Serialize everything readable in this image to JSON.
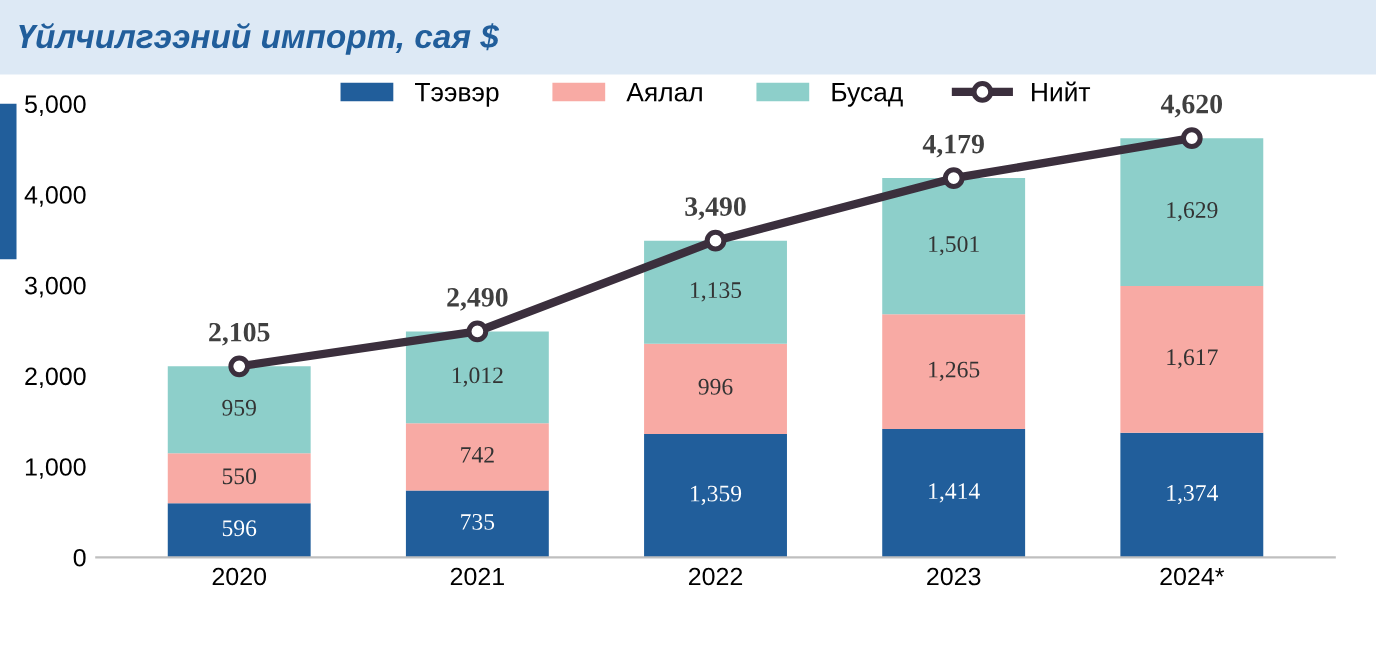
{
  "chart_data": {
    "type": "bar",
    "title": "Үйлчилгээний импорт, сая $",
    "stacked": true,
    "categories": [
      "2020",
      "2021",
      "2022",
      "2023",
      "2024*"
    ],
    "series": [
      {
        "name": "Тээвэр",
        "color": "#215e9b",
        "values": [
          596,
          735,
          1359,
          1414,
          1374
        ],
        "value_labels": [
          "596",
          "735",
          "1,359",
          "1,414",
          "1,374"
        ]
      },
      {
        "name": "Аялал",
        "color": "#f8aaa4",
        "values": [
          550,
          742,
          996,
          1265,
          1617
        ],
        "value_labels": [
          "550",
          "742",
          "996",
          "1,265",
          "1,617"
        ]
      },
      {
        "name": "Бусад",
        "color": "#8dcfca",
        "values": [
          959,
          1012,
          1135,
          1501,
          1629
        ],
        "value_labels": [
          "959",
          "1,012",
          "1,135",
          "1,501",
          "1,629"
        ]
      },
      {
        "name": "Нийт",
        "type": "line",
        "color": "#3b2f3d",
        "marker": "circle",
        "values": [
          2105,
          2490,
          3490,
          4179,
          4620
        ],
        "value_labels": [
          "2,105",
          "2,490",
          "3,490",
          "4,179",
          "4,620"
        ]
      }
    ],
    "ylim": [
      0,
      5000
    ],
    "yticks": [
      0,
      {
        "value": 1000,
        "label": "1,000"
      },
      {
        "value": 2000,
        "label": "2,000"
      },
      {
        "value": 3000,
        "label": "3,000"
      },
      {
        "value": 4000,
        "label": "4,000"
      },
      {
        "value": 5000,
        "label": "5,000"
      }
    ],
    "legend": "top",
    "grid": false
  }
}
